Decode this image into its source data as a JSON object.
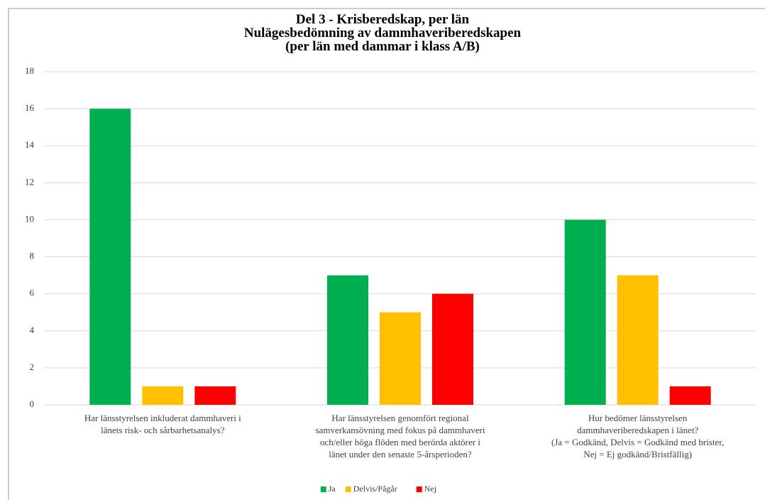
{
  "chart_data": {
    "type": "bar",
    "title": "Del 3 - Krisberedskap, per län\nNulägesbedömning av dammhaveriberedskapen\n(per län med dammar i klass A/B)",
    "categories": [
      "Har länsstyrelsen inkluderat dammhaveri i\nlänets risk- och sårbarhetsanalys?",
      "Har länsstyrelsen genomfört regional\nsamverkansövning med fokus på dammhaveri\noch/eller höga flöden med berörda aktörer i\nlänet under den senaste 5-årsperioden?",
      "Hur bedömer länsstyrelsen\ndammhaveriberedskapen i länet?\n(Ja = Godkänd, Delvis = Godkänd med brister,\nNej = Ej godkänd/Bristfällig)"
    ],
    "series": [
      {
        "name": "Ja",
        "color": "#00b050",
        "values": [
          16,
          7,
          10
        ]
      },
      {
        "name": "Delvis/Pågår",
        "color": "#ffc000",
        "values": [
          1,
          5,
          7
        ]
      },
      {
        "name": "Nej",
        "color": "#ff0000",
        "values": [
          1,
          6,
          1
        ]
      }
    ],
    "ylim": [
      0,
      18
    ],
    "yticks": [
      0,
      2,
      4,
      6,
      8,
      10,
      12,
      14,
      16,
      18
    ],
    "grid": true,
    "legend": "bottom"
  }
}
